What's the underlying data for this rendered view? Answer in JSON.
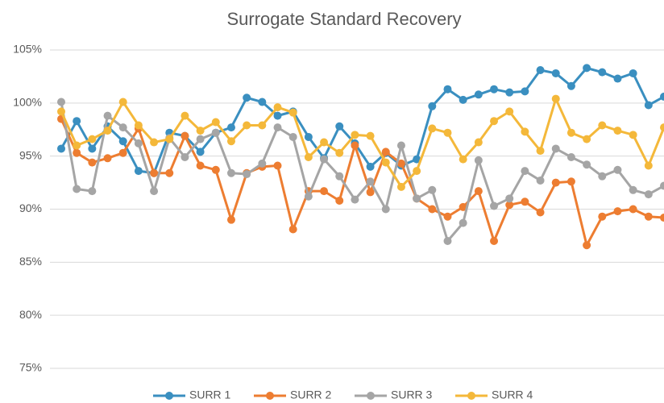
{
  "chart_data": {
    "type": "line",
    "title": "Surrogate Standard Recovery",
    "categories": [
      null,
      null,
      null,
      null,
      null,
      null,
      null,
      null,
      null,
      null,
      null,
      null,
      null,
      null,
      null,
      null,
      null,
      null,
      null,
      null,
      null,
      null,
      null,
      null,
      null,
      null,
      null,
      null,
      null,
      null,
      null,
      null,
      null,
      null,
      null,
      null,
      null,
      null,
      null,
      null
    ],
    "series": [
      {
        "name": "SURR 1",
        "color": "#3a8fc0",
        "values": [
          95.7,
          98.3,
          95.7,
          97.8,
          96.4,
          93.6,
          93.4,
          97.2,
          96.9,
          95.4,
          97.2,
          97.7,
          100.5,
          100.1,
          98.8,
          99.2,
          96.8,
          94.8,
          97.8,
          96.2,
          94,
          95.3,
          94.1,
          94.7,
          99.7,
          101.3,
          100.3,
          100.8,
          101.3,
          101,
          101.1,
          103.1,
          102.8,
          101.6,
          103.3,
          102.9,
          102.3,
          102.8,
          99.8,
          100.6
        ]
      },
      {
        "name": "SURR 2",
        "color": "#ed7d31",
        "values": [
          98.5,
          95.3,
          94.4,
          94.8,
          95.3,
          97.6,
          93.4,
          93.4,
          96.9,
          94.1,
          93.7,
          89,
          93.4,
          94,
          94.1,
          88.1,
          91.7,
          91.7,
          90.8,
          96,
          91.6,
          95.4,
          94.3,
          91,
          90,
          89.3,
          90.2,
          91.7,
          87,
          90.4,
          90.7,
          89.7,
          92.5,
          92.6,
          86.6,
          89.3,
          89.8,
          90,
          89.3,
          89.2
        ]
      },
      {
        "name": "SURR 3",
        "color": "#a5a5a5",
        "values": [
          100.1,
          91.9,
          91.7,
          98.8,
          97.7,
          96.2,
          91.7,
          96.7,
          94.9,
          96.6,
          97.2,
          93.4,
          93.3,
          94.3,
          97.7,
          96.8,
          91.2,
          94.7,
          93.1,
          90.9,
          92.6,
          90,
          96,
          91,
          91.8,
          87,
          88.7,
          94.6,
          90.3,
          91,
          93.6,
          92.7,
          95.7,
          94.9,
          94.2,
          93.1,
          93.7,
          91.8,
          91.4,
          92.2
        ]
      },
      {
        "name": "SURR 4",
        "color": "#f4b83a",
        "values": [
          99.2,
          96,
          96.6,
          97.4,
          100.1,
          97.9,
          96.3,
          96.6,
          98.8,
          97.4,
          98.2,
          96.4,
          97.9,
          97.9,
          99.6,
          99.1,
          94.9,
          96.3,
          95.3,
          97,
          96.9,
          94.4,
          92.1,
          93.6,
          97.6,
          97.2,
          94.7,
          96.3,
          98.3,
          99.2,
          97.3,
          95.5,
          100.4,
          97.2,
          96.6,
          97.9,
          97.4,
          97,
          94.1,
          97.7
        ]
      }
    ],
    "ylim": [
      75,
      105
    ],
    "yticks": [
      {
        "value": 75,
        "label": "75%"
      },
      {
        "value": 80,
        "label": "80%"
      },
      {
        "value": 85,
        "label": "85%"
      },
      {
        "value": 90,
        "label": "90%"
      },
      {
        "value": 95,
        "label": "95%"
      },
      {
        "value": 100,
        "label": "100%"
      },
      {
        "value": 105,
        "label": "105%"
      }
    ],
    "grid": true,
    "legend": "bottom"
  }
}
